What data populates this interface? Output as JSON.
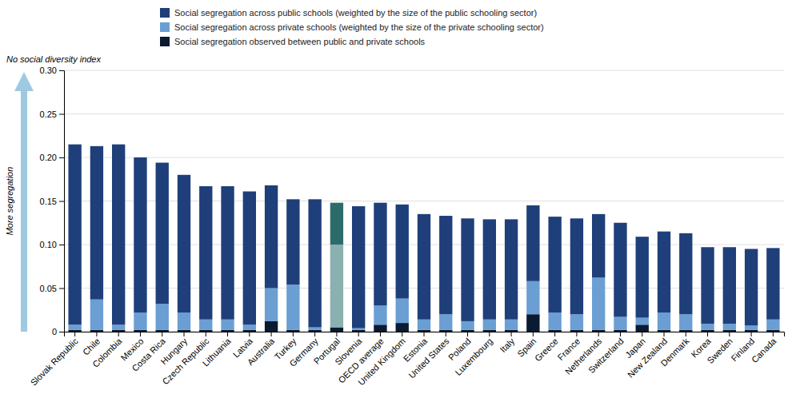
{
  "chart_data": {
    "type": "bar",
    "stacked": true,
    "categories": [
      "Slovak Republic",
      "Chile",
      "Colombia",
      "Mexico",
      "Costa Rica",
      "Hungary",
      "Czech Republic",
      "Lithuania",
      "Latvia",
      "Australia",
      "Turkey",
      "Germany",
      "Portugal",
      "Slovenia",
      "OECD average",
      "United Kingdom",
      "Estonia",
      "United States",
      "Poland",
      "Luxembourg",
      "Italy",
      "Spain",
      "Greece",
      "France",
      "Netherlands",
      "Switzerland",
      "Japan",
      "New Zealand",
      "Denmark",
      "Korea",
      "Sweden",
      "Finland",
      "Canada"
    ],
    "series": [
      {
        "name": "Social segregation observed between public and private schools",
        "color": "#0a1a30",
        "values": [
          0.002,
          0.002,
          0.002,
          0.002,
          0.002,
          0.002,
          0.002,
          0.002,
          0.002,
          0.012,
          0.002,
          0.002,
          0.005,
          0.002,
          0.008,
          0.01,
          0.002,
          0.002,
          0.002,
          0.002,
          0.002,
          0.02,
          0.002,
          0.002,
          0.002,
          0.002,
          0.008,
          0.002,
          0.002,
          0.002,
          0.002,
          0.002,
          0.002
        ]
      },
      {
        "name": "Social segregation across private schools (weighted by the size of the private schooling sector)",
        "color": "#6b9fd4",
        "colors": [
          "#6b9fd4",
          "#6b9fd4",
          "#6b9fd4",
          "#6b9fd4",
          "#6b9fd4",
          "#6b9fd4",
          "#6b9fd4",
          "#6b9fd4",
          "#6b9fd4",
          "#6b9fd4",
          "#6b9fd4",
          "#6b9fd4",
          "#8ab0b0",
          "#6b9fd4",
          "#6b9fd4",
          "#6b9fd4",
          "#6b9fd4",
          "#6b9fd4",
          "#6b9fd4",
          "#6b9fd4",
          "#6b9fd4",
          "#6b9fd4",
          "#6b9fd4",
          "#6b9fd4",
          "#6b9fd4",
          "#6b9fd4",
          "#6b9fd4",
          "#6b9fd4",
          "#6b9fd4",
          "#6b9fd4",
          "#6b9fd4",
          "#6b9fd4",
          "#6b9fd4"
        ],
        "values": [
          0.006,
          0.035,
          0.006,
          0.02,
          0.03,
          0.02,
          0.012,
          0.012,
          0.006,
          0.038,
          0.052,
          0.003,
          0.095,
          0.002,
          0.022,
          0.028,
          0.012,
          0.018,
          0.01,
          0.012,
          0.012,
          0.038,
          0.02,
          0.018,
          0.06,
          0.015,
          0.008,
          0.02,
          0.018,
          0.007,
          0.007,
          0.005,
          0.012
        ]
      },
      {
        "name": "Social segregation across public schools (weighted by the size of the public schooling sector)",
        "color": "#1f3f7a",
        "colors": [
          "#1f3f7a",
          "#1f3f7a",
          "#1f3f7a",
          "#1f3f7a",
          "#1f3f7a",
          "#1f3f7a",
          "#1f3f7a",
          "#1f3f7a",
          "#1f3f7a",
          "#1f3f7a",
          "#1f3f7a",
          "#1f3f7a",
          "#2d6b6b",
          "#1f3f7a",
          "#1f3f7a",
          "#1f3f7a",
          "#1f3f7a",
          "#1f3f7a",
          "#1f3f7a",
          "#1f3f7a",
          "#1f3f7a",
          "#1f3f7a",
          "#1f3f7a",
          "#1f3f7a",
          "#1f3f7a",
          "#1f3f7a",
          "#1f3f7a",
          "#1f3f7a",
          "#1f3f7a",
          "#1f3f7a",
          "#1f3f7a",
          "#1f3f7a",
          "#1f3f7a"
        ],
        "values": [
          0.207,
          0.176,
          0.207,
          0.178,
          0.162,
          0.158,
          0.153,
          0.153,
          0.153,
          0.118,
          0.098,
          0.147,
          0.048,
          0.14,
          0.118,
          0.108,
          0.121,
          0.113,
          0.118,
          0.115,
          0.115,
          0.087,
          0.11,
          0.11,
          0.073,
          0.108,
          0.093,
          0.093,
          0.093,
          0.088,
          0.088,
          0.088,
          0.082
        ]
      }
    ],
    "ylabel": "More segregation",
    "annotations": [
      "No social diversity index"
    ],
    "ylim": [
      0,
      0.3
    ],
    "yticks": [
      0,
      0.05,
      {
        "value": 0.1,
        "label": "0.10"
      },
      {
        "value": 0.15,
        "label": "0.15"
      },
      {
        "value": 0.2,
        "label": "0.20"
      },
      0.25,
      {
        "value": 0.3,
        "label": "0.30"
      }
    ],
    "grid": true,
    "legend": "top"
  }
}
